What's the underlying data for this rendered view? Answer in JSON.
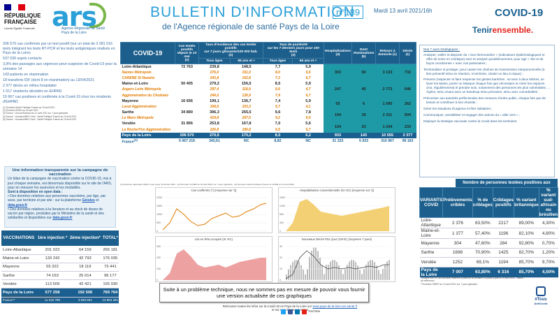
{
  "header": {
    "rf_name": "RÉPUBLIQUE FRANÇAISE",
    "rf_motto": "Liberté Égalité Fraternité",
    "ars_word": "ars",
    "ars_sub_1": "Agence Régionale de Santé",
    "ars_sub_2": "Pays de la Loire",
    "title": "BULLETIN D'INFORMATION",
    "subtitle": "de l'Agence régionale de santé Pays de la Loire",
    "number": "n°189",
    "date": "Mardi 13 avril 2021/16h",
    "covid": "COVID-19",
    "tenir_1": "Tenir",
    "tenir_2": "ensemble."
  },
  "left_col": {
    "p1": "206 570 cas confirmés par un test positif (sur un total de 3 281 516 tests intégrant les tests RT-PCR et les tests antigéniques réalisés en Pays de la Loire)",
    "p2": "537 030 sujets contacts",
    "p3": "3,9% des passages aux urgences pour suspicion de Covid-19 pour la semaine 14",
    "p4": "143 patients en réanimation",
    "p5": "18 transferts IDF (dont 8 en réanimation) au 13/04/2021",
    "p6": "2 377 décès en milieu hospitalier",
    "p7": "1 017 résidents décédés en EHPAD",
    "p8": "15 667 cas positives et confirmés à la Covid-19 chez les résidents d'EHPAD",
    "sources": [
      "(1) Données Santé Publique France au 13 avril 2021",
      "(2) Données SNDS au 13 avril 2021",
      "(3) Source : Oscour/Sursaud au 11 avril 2021 sur 7 jours glissants",
      "(4) Source : VoozanoéMIS Covid - Santé Publique France au 19 avril 2021",
      "(5) Source : VoozanoéMIS Covid - Santé Publique France au 19 avril 2021"
    ]
  },
  "info_box": {
    "title": "Une information transparente sur la campagne de vaccination",
    "text1": "Un bilan de la campagne de vaccination contre la COVID-19, mis à jour chaque semaine, est désormais disponible sur le site de l'ARS, pour en mesurer les avancées et les modalités.",
    "text2": "Sont à disposition en open data :",
    "bullet1": "Des données relatives aux personnes vaccinées, par âge, par sexe, par territoire et par site : sur la plateforme",
    "link1": "Géodes",
    "link1b": "data.gouv.fr",
    "bullet2": "Des données relatives à la livraison et au stock de doses de vaccin par région, produites par le Ministère de la santé et des solidarités et disponibles sur",
    "link2": "data.gouv.fr"
  },
  "vacc_table": {
    "headers": [
      "VACCINATIONS",
      "1ère injection *",
      "2ème injection*",
      "TOTAL*"
    ],
    "rows": [
      [
        "Loire-Atlantique",
        "201 022",
        "64 159",
        "265 181"
      ],
      [
        "Maine-et-Loire",
        "133 242",
        "42 793",
        "176 035"
      ],
      [
        "Mayenne",
        "55 322",
        "18 119",
        "73 441"
      ],
      [
        "Sarthe",
        "74 163",
        "25 014",
        "99 177"
      ],
      [
        "Vendée",
        "113 509",
        "42 421",
        "155 930"
      ]
    ],
    "total": [
      "Pays de la Loire",
      "577 258",
      "192 506",
      "769 764"
    ],
    "france": [
      "France**",
      "11 030 780",
      "3 833 501",
      "14 864 281"
    ],
    "foot1": "*Données SNDS non éditées à la date du 13 avril 2021",
    "foot2": "**Données Santé Publique France au 13 avril 2021"
  },
  "main_table": {
    "h_covid": "COVID-19",
    "h_cases": "Cas testés positifs",
    "h_cases_sub": "depuis le 13 mai",
    "h_cases_ref": "(2)",
    "h_incid": "Taux d'incidence des cas testés positifs",
    "h_incid_sub": "sur 7 jours glissants/100 000 hab.",
    "h_incid_ref": "(2)",
    "h_posit": "Taux de positivité",
    "h_posit_sub": "sur les 7 derniers jours pour 100 tests",
    "h_posit_ref": "(2)",
    "h_hosp": "Hospitalisations (4)",
    "h_rea": "Dont réanimations (5)",
    "h_ret": "Retours à domicile (1)",
    "h_dec": "Décès (1)",
    "h_tous": "Tous âges",
    "h_65": "65 ans et +",
    "rows": [
      {
        "name": "Loire-Atlantique",
        "cases": "72 763",
        "inc_all": "239,8",
        "inc_65": "148,5",
        "pos_all": "7,7",
        "pos_65": "5,9",
        "sub": [
          [
            "Nantes Métropole",
            "276,0",
            "151,0",
            "8,0",
            "5,6"
          ],
          [
            "CARENE St Nazaire",
            "243,8",
            "162,8",
            "7,3",
            "6,7"
          ]
        ],
        "hosp": "303",
        "rea": "50",
        "ret": "3 133",
        "dec": "732"
      },
      {
        "name": "Maine-et-Loire",
        "cases": "50 405",
        "inc_all": "279,2",
        "inc_65": "156,5",
        "pos_all": "8,5",
        "pos_65": "5,9",
        "sub": [
          [
            "Angers Loire Métropole",
            "297,4",
            "118,9",
            "8,6",
            "4,7"
          ],
          [
            "Agglomération du Choletais",
            "244,0",
            "136,9",
            "7,9",
            "6,7"
          ]
        ],
        "hosp": "247",
        "rea": "45",
        "ret": "2 772",
        "dec": "646"
      },
      {
        "name": "Mayenne",
        "cases": "16 656",
        "inc_all": "199,1",
        "inc_65": "136,7",
        "pos_all": "7,4",
        "pos_65": "5,9",
        "sub": [
          [
            "Laval Agglomération",
            "169,6",
            "103,3",
            "5,7",
            "4,1"
          ]
        ],
        "hosp": "55",
        "rea": "6",
        "ret": "1 095",
        "dec": "262"
      },
      {
        "name": "Sarthe",
        "cases": "34 890",
        "inc_all": "396,3",
        "inc_65": "255,5",
        "pos_all": "9,6",
        "pos_65": "7,8",
        "sub": [
          [
            "Le Mans Métropole",
            "419,8",
            "207,5",
            "9,2",
            "6,0"
          ]
        ],
        "hosp": "194",
        "rea": "19",
        "ret": "2 311",
        "dec": "504"
      },
      {
        "name": "Vendée",
        "cases": "31 856",
        "inc_all": "253,8",
        "inc_65": "167,8",
        "pos_all": "7,0",
        "pos_65": "5,6",
        "sub": [
          [
            "La Roche/Yon Agglomération",
            "226,8",
            "196,8",
            "6,5",
            "5,7"
          ]
        ],
        "hosp": "134",
        "rea": "23",
        "ret": "1 244",
        "dec": "233"
      }
    ],
    "pdl": [
      "Pays de la Loire",
      "206 570",
      "270,6",
      "170,2",
      "8,0",
      "6,2",
      "933",
      "143",
      "10 555",
      "2 377"
    ],
    "france": [
      "France",
      "5 067 216",
      "342,61",
      "NC",
      "8,82",
      "NC",
      "31 323",
      "5 933",
      "310 967",
      "99 163"
    ],
    "france_sup": "(1)",
    "foot": "(1) Données nationales SNAC mise à jour 10 février 2021 - (2) Données SI DEP au 10 avril 2021 sur 7 jours glissants - (3) Données Santé Publique France et CNAM au 13 avril 2021"
  },
  "charts": [
    {
      "title": "Cas confirmés (*) (moyenne sur 7j)",
      "yticks": [
        "0",
        "500",
        "1000",
        "1500",
        "2000"
      ]
    },
    {
      "title": "Hospitalisation conventionnelle (SI VIC) (moyenne sur 7j)",
      "yticks": [
        "0",
        "400",
        "800",
        "1200",
        "1600"
      ]
    },
    {
      "title": "Lits en Réa occupés (SI VIC)",
      "yticks": [
        "0",
        "100",
        "200",
        "300"
      ]
    },
    {
      "title": "Nouveaux Décès PDL /jour (SIVIC) (moyenne 7 jours)",
      "yticks": [
        "0",
        "10",
        "20",
        "30"
      ]
    }
  ],
  "notice": {
    "text": "Suite à un problème technique, nous ne sommes pas en mesure de pouvoir vous fournir une version actualisée de ces graphiques"
  },
  "bottom": {
    "text": "Retrouvez toutes les infos sur la Covid-19 en Pays de la Loire sur",
    "url": "www.pays-de-la-loire.ars.sante.fr",
    "text2": "et sur nos réseaux sociaux",
    "youtube": "YouTube"
  },
  "strategy": {
    "title": "Nos 7 axes stratégiques :",
    "items": [
      "Anticiper, veiller et disposer du « bon thermomètre » (indicateurs épidémiologiques et offre de soins en cinétique) suivi et analysé quotidiennement, pour agir « vite et de façon coordonnée » avec nos partenaires ;",
      "Territorialiser et protéger, pour casser les chaînes de transmission interpersonnelle (à titre préventif et/ou en réaction, si territoire, cluster ou lieu à risque) ;",
      "Prévenir (respecter et faire respecter les gestes barrières : se tenir à deux Mètres, se laver les Mains, porter un Masque chaque fois que nécessaire et Aérer les espaces clos, régulièrement) et prendre soin, notamment des personnes les plus vulnérables, … Âgées, et/ou vivant avec un handicap et/ou précaires, et/ou avec comorbidités ;",
      "Préconiser aux autorités préfectorales des mesures d'ordre public, chaque fois que de besoin et contribuer à leur réussite ;",
      "Gérer les situations d'urgence et être solidaires ;",
      "Communiquer, sensibiliser et engager des actions du « aller vers » ;",
      "Déployer la stratégie vaccinale contre la Covid dans les territoires."
    ]
  },
  "variants": {
    "caption": "Nombre de personnes testées positives aux variants",
    "headers": [
      "VARIANTS COVID",
      "Prélèvements criblés",
      "% de criblages",
      "Criblages positifs",
      "% variant britannique",
      "% variant sud-africain ou brésilien"
    ],
    "rows": [
      [
        "Loire-Atlantique",
        "2 376",
        "63,50%",
        "2217",
        "89,00%",
        "4,30%"
      ],
      [
        "Maine-et-Loire",
        "1 377",
        "57,40%",
        "1196",
        "82,10%",
        "4,80%"
      ],
      [
        "Mayenne",
        "304",
        "47,60%",
        "284",
        "92,80%",
        "0,70%"
      ],
      [
        "Sarthe",
        "1698",
        "70,90%",
        "1425",
        "82,70%",
        "1,20%"
      ],
      [
        "Vendée",
        "1252",
        "69,1%",
        "1194",
        "85,70%",
        "9,70%"
      ]
    ],
    "pdl": [
      "Pays de la Loire",
      "7 007",
      "63,80%",
      "6 316",
      "85,70%",
      "4,50%"
    ],
    "foot1": "*Analyse sur 10 162 données relatives à partir de la semaine 13 (mise à jour le 10 avril 2021 - valeur de référence)",
    "foot2": "**Données SIDEP au 10 avril 2021 sur 7 jours glissants"
  },
  "tous": {
    "l1": "#Tous",
    "l2": "AntiCovid"
  },
  "colors": {
    "primary": "#1d5f8c",
    "accent": "#2a9fd8",
    "teal": "#1e9aa6",
    "orange": "#e07b00",
    "green": "#7ab648",
    "red": "#e2231a"
  }
}
